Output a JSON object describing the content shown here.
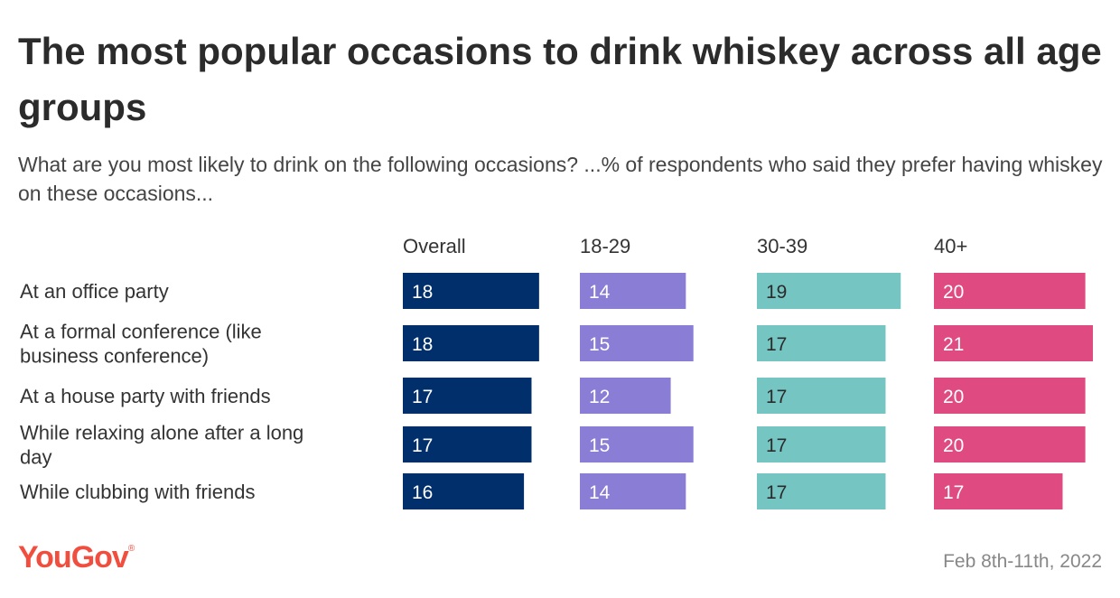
{
  "title": "The most popular occasions to drink whiskey across all age groups",
  "subtitle": "What are you most likely to drink on the following occasions? ...% of respondents who said they prefer having whiskey on these occasions...",
  "footer": {
    "logo": "YouGov",
    "date": "Feb 8th-11th, 2022"
  },
  "chart_data": {
    "type": "bar",
    "categories": [
      "At an office party",
      "At a formal conference (like business conference)",
      "At a house party with friends",
      "While relaxing alone after a long day",
      "While clubbing with friends"
    ],
    "series": [
      {
        "name": "Overall",
        "values": [
          18,
          18,
          17,
          17,
          16
        ],
        "color": "#002f6c"
      },
      {
        "name": "18-29",
        "values": [
          14,
          15,
          12,
          15,
          14
        ],
        "color": "#8a7dd6"
      },
      {
        "name": "30-39",
        "values": [
          19,
          17,
          17,
          17,
          17
        ],
        "color": "#75c5c3"
      },
      {
        "name": "40+",
        "values": [
          20,
          21,
          20,
          20,
          17
        ],
        "color": "#df4b81"
      }
    ],
    "label_colors": [
      "#ffffff",
      "#ffffff",
      "#2b2b2b",
      "#ffffff"
    ],
    "xlim": [
      0,
      21
    ],
    "orientation": "horizontal",
    "layout": "small-multiples",
    "grid": false,
    "legend": "column-headers"
  }
}
